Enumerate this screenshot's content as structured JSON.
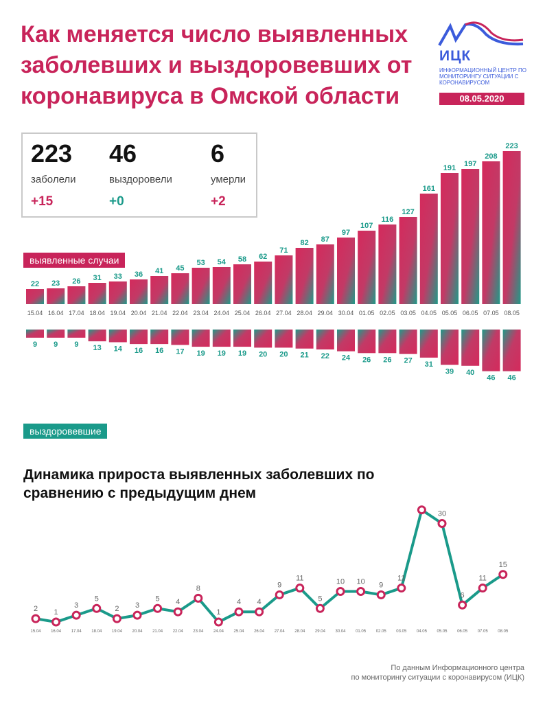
{
  "header": {
    "title": "Как меняется число выявленных заболевших и выздоровевших от коронавируса в Омской области"
  },
  "logo": {
    "abbr": "ИЦК",
    "description": "Информационный центр по мониторингу ситуации с коронавирусом",
    "date": "08.05.2020"
  },
  "stats": {
    "cases": {
      "value": "223",
      "label": "заболели",
      "delta": "+15"
    },
    "recovered": {
      "value": "46",
      "label": "выздоровели",
      "delta": "+0"
    },
    "deaths": {
      "value": "6",
      "label": "умерли",
      "delta": "+2"
    }
  },
  "colors": {
    "accent": "#c8245a",
    "teal": "#1a9a8a",
    "logo_blue": "#3b5bdb"
  },
  "chart_data": [
    {
      "type": "bar",
      "label": "выявленные случаи",
      "categories": [
        "15.04",
        "16.04",
        "17.04",
        "18.04",
        "19.04",
        "20.04",
        "21.04",
        "22.04",
        "23.04",
        "24.04",
        "25.04",
        "26.04",
        "27.04",
        "28.04",
        "29.04",
        "30.04",
        "01.05",
        "02.05",
        "03.05",
        "04.05",
        "05.05",
        "06.05",
        "07.05",
        "08.05"
      ],
      "values": [
        22,
        23,
        26,
        31,
        33,
        36,
        41,
        45,
        53,
        54,
        58,
        62,
        71,
        82,
        87,
        97,
        107,
        116,
        127,
        161,
        191,
        197,
        208,
        223
      ]
    },
    {
      "type": "bar",
      "label": "выздоровевшие",
      "orientation": "downward",
      "categories": [
        "15.04",
        "16.04",
        "17.04",
        "18.04",
        "19.04",
        "20.04",
        "21.04",
        "22.04",
        "23.04",
        "24.04",
        "25.04",
        "26.04",
        "27.04",
        "28.04",
        "29.04",
        "30.04",
        "01.05",
        "02.05",
        "03.05",
        "04.05",
        "05.05",
        "06.05",
        "07.05",
        "08.05"
      ],
      "values": [
        9,
        9,
        9,
        13,
        14,
        16,
        16,
        17,
        19,
        19,
        19,
        20,
        20,
        21,
        22,
        24,
        26,
        26,
        27,
        31,
        39,
        40,
        46,
        46
      ]
    },
    {
      "type": "line",
      "title": "Динамика прироста выявленных заболевших по сравнению с предыдущим днем",
      "categories": [
        "15.04",
        "16.04",
        "17.04",
        "18.04",
        "19.04",
        "20.04",
        "21.04",
        "22.04",
        "23.04",
        "24.04",
        "25.04",
        "26.04",
        "27.04",
        "28.04",
        "29.04",
        "30.04",
        "01.05",
        "02.05",
        "03.05",
        "04.05",
        "05.05",
        "06.05",
        "07.05",
        "08.05"
      ],
      "values": [
        2,
        1,
        3,
        5,
        2,
        3,
        5,
        4,
        8,
        1,
        4,
        4,
        9,
        11,
        5,
        10,
        10,
        9,
        11,
        34,
        30,
        6,
        11,
        15
      ]
    }
  ],
  "source": {
    "line1": "По данным Информационного центра",
    "line2": "по мониторингу ситуации с коронавирусом (ИЦК)"
  }
}
